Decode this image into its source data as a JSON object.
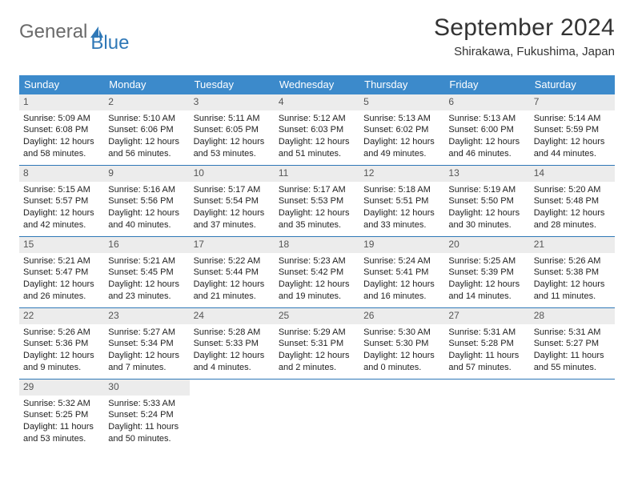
{
  "brand": {
    "word1": "General",
    "word2": "Blue"
  },
  "title": "September 2024",
  "subtitle": "Shirakawa, Fukushima, Japan",
  "colors": {
    "header_bg": "#3c8acb",
    "header_fg": "#ffffff",
    "rule": "#2f78b7",
    "daynum_bg": "#ececec",
    "logo_gray": "#6a6a6a",
    "logo_blue": "#2f78b7"
  },
  "weekdays": [
    "Sunday",
    "Monday",
    "Tuesday",
    "Wednesday",
    "Thursday",
    "Friday",
    "Saturday"
  ],
  "weeks": [
    [
      {
        "n": "1",
        "sr": "5:09 AM",
        "ss": "6:08 PM",
        "dl": "12 hours and 58 minutes."
      },
      {
        "n": "2",
        "sr": "5:10 AM",
        "ss": "6:06 PM",
        "dl": "12 hours and 56 minutes."
      },
      {
        "n": "3",
        "sr": "5:11 AM",
        "ss": "6:05 PM",
        "dl": "12 hours and 53 minutes."
      },
      {
        "n": "4",
        "sr": "5:12 AM",
        "ss": "6:03 PM",
        "dl": "12 hours and 51 minutes."
      },
      {
        "n": "5",
        "sr": "5:13 AM",
        "ss": "6:02 PM",
        "dl": "12 hours and 49 minutes."
      },
      {
        "n": "6",
        "sr": "5:13 AM",
        "ss": "6:00 PM",
        "dl": "12 hours and 46 minutes."
      },
      {
        "n": "7",
        "sr": "5:14 AM",
        "ss": "5:59 PM",
        "dl": "12 hours and 44 minutes."
      }
    ],
    [
      {
        "n": "8",
        "sr": "5:15 AM",
        "ss": "5:57 PM",
        "dl": "12 hours and 42 minutes."
      },
      {
        "n": "9",
        "sr": "5:16 AM",
        "ss": "5:56 PM",
        "dl": "12 hours and 40 minutes."
      },
      {
        "n": "10",
        "sr": "5:17 AM",
        "ss": "5:54 PM",
        "dl": "12 hours and 37 minutes."
      },
      {
        "n": "11",
        "sr": "5:17 AM",
        "ss": "5:53 PM",
        "dl": "12 hours and 35 minutes."
      },
      {
        "n": "12",
        "sr": "5:18 AM",
        "ss": "5:51 PM",
        "dl": "12 hours and 33 minutes."
      },
      {
        "n": "13",
        "sr": "5:19 AM",
        "ss": "5:50 PM",
        "dl": "12 hours and 30 minutes."
      },
      {
        "n": "14",
        "sr": "5:20 AM",
        "ss": "5:48 PM",
        "dl": "12 hours and 28 minutes."
      }
    ],
    [
      {
        "n": "15",
        "sr": "5:21 AM",
        "ss": "5:47 PM",
        "dl": "12 hours and 26 minutes."
      },
      {
        "n": "16",
        "sr": "5:21 AM",
        "ss": "5:45 PM",
        "dl": "12 hours and 23 minutes."
      },
      {
        "n": "17",
        "sr": "5:22 AM",
        "ss": "5:44 PM",
        "dl": "12 hours and 21 minutes."
      },
      {
        "n": "18",
        "sr": "5:23 AM",
        "ss": "5:42 PM",
        "dl": "12 hours and 19 minutes."
      },
      {
        "n": "19",
        "sr": "5:24 AM",
        "ss": "5:41 PM",
        "dl": "12 hours and 16 minutes."
      },
      {
        "n": "20",
        "sr": "5:25 AM",
        "ss": "5:39 PM",
        "dl": "12 hours and 14 minutes."
      },
      {
        "n": "21",
        "sr": "5:26 AM",
        "ss": "5:38 PM",
        "dl": "12 hours and 11 minutes."
      }
    ],
    [
      {
        "n": "22",
        "sr": "5:26 AM",
        "ss": "5:36 PM",
        "dl": "12 hours and 9 minutes."
      },
      {
        "n": "23",
        "sr": "5:27 AM",
        "ss": "5:34 PM",
        "dl": "12 hours and 7 minutes."
      },
      {
        "n": "24",
        "sr": "5:28 AM",
        "ss": "5:33 PM",
        "dl": "12 hours and 4 minutes."
      },
      {
        "n": "25",
        "sr": "5:29 AM",
        "ss": "5:31 PM",
        "dl": "12 hours and 2 minutes."
      },
      {
        "n": "26",
        "sr": "5:30 AM",
        "ss": "5:30 PM",
        "dl": "12 hours and 0 minutes."
      },
      {
        "n": "27",
        "sr": "5:31 AM",
        "ss": "5:28 PM",
        "dl": "11 hours and 57 minutes."
      },
      {
        "n": "28",
        "sr": "5:31 AM",
        "ss": "5:27 PM",
        "dl": "11 hours and 55 minutes."
      }
    ],
    [
      {
        "n": "29",
        "sr": "5:32 AM",
        "ss": "5:25 PM",
        "dl": "11 hours and 53 minutes."
      },
      {
        "n": "30",
        "sr": "5:33 AM",
        "ss": "5:24 PM",
        "dl": "11 hours and 50 minutes."
      },
      null,
      null,
      null,
      null,
      null
    ]
  ],
  "labels": {
    "sunrise": "Sunrise: ",
    "sunset": "Sunset: ",
    "daylight": "Daylight: "
  }
}
